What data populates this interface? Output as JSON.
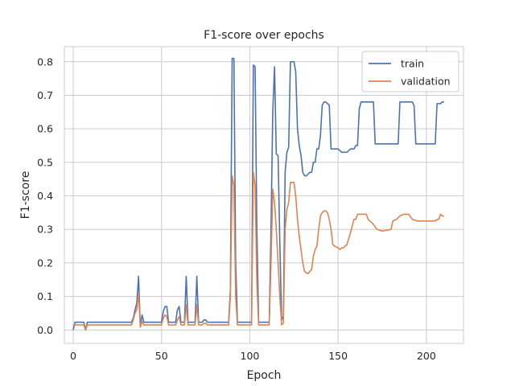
{
  "chart_data": {
    "type": "line",
    "title": "F1-score over epochs",
    "xlabel": "Epoch",
    "ylabel": "F1-score",
    "xlim": [
      -5,
      221
    ],
    "ylim": [
      -0.04,
      0.845
    ],
    "xticks": [
      0,
      50,
      100,
      150,
      200
    ],
    "yticks": [
      0.0,
      0.1,
      0.2,
      0.3,
      0.4,
      0.5,
      0.6,
      0.7,
      0.8
    ],
    "xtick_labels": [
      "0",
      "50",
      "100",
      "150",
      "200"
    ],
    "ytick_labels": [
      "0.0",
      "0.1",
      "0.2",
      "0.3",
      "0.4",
      "0.5",
      "0.6",
      "0.7",
      "0.8"
    ],
    "grid": true,
    "legend_position": "top-right",
    "series": [
      {
        "name": "train",
        "color": "#4c72b0",
        "points": [
          [
            0,
            0.0
          ],
          [
            1,
            0.023
          ],
          [
            2,
            0.023
          ],
          [
            3,
            0.023
          ],
          [
            4,
            0.023
          ],
          [
            5,
            0.023
          ],
          [
            6,
            0.023
          ],
          [
            7,
            0.0
          ],
          [
            8,
            0.023
          ],
          [
            9,
            0.023
          ],
          [
            10,
            0.023
          ],
          [
            15,
            0.023
          ],
          [
            20,
            0.023
          ],
          [
            25,
            0.023
          ],
          [
            30,
            0.023
          ],
          [
            33,
            0.023
          ],
          [
            34,
            0.035
          ],
          [
            35,
            0.06
          ],
          [
            36,
            0.08
          ],
          [
            37,
            0.16
          ],
          [
            38,
            0.01
          ],
          [
            39,
            0.045
          ],
          [
            40,
            0.023
          ],
          [
            45,
            0.023
          ],
          [
            50,
            0.023
          ],
          [
            51,
            0.055
          ],
          [
            52,
            0.07
          ],
          [
            53,
            0.07
          ],
          [
            54,
            0.023
          ],
          [
            55,
            0.023
          ],
          [
            58,
            0.023
          ],
          [
            59,
            0.06
          ],
          [
            60,
            0.07
          ],
          [
            61,
            0.023
          ],
          [
            62,
            0.023
          ],
          [
            63,
            0.023
          ],
          [
            64,
            0.16
          ],
          [
            65,
            0.023
          ],
          [
            66,
            0.023
          ],
          [
            67,
            0.023
          ],
          [
            68,
            0.023
          ],
          [
            69,
            0.023
          ],
          [
            70,
            0.16
          ],
          [
            71,
            0.023
          ],
          [
            72,
            0.023
          ],
          [
            73,
            0.023
          ],
          [
            74,
            0.03
          ],
          [
            75,
            0.03
          ],
          [
            76,
            0.023
          ],
          [
            77,
            0.023
          ],
          [
            80,
            0.023
          ],
          [
            85,
            0.023
          ],
          [
            88,
            0.023
          ],
          [
            89,
            0.12
          ],
          [
            90,
            0.81
          ],
          [
            91,
            0.81
          ],
          [
            92,
            0.2
          ],
          [
            93,
            0.023
          ],
          [
            95,
            0.023
          ],
          [
            100,
            0.023
          ],
          [
            101,
            0.023
          ],
          [
            102,
            0.79
          ],
          [
            103,
            0.785
          ],
          [
            104,
            0.3
          ],
          [
            105,
            0.023
          ],
          [
            108,
            0.023
          ],
          [
            110,
            0.023
          ],
          [
            111,
            0.023
          ],
          [
            112,
            0.3
          ],
          [
            113,
            0.65
          ],
          [
            114,
            0.785
          ],
          [
            115,
            0.525
          ],
          [
            116,
            0.52
          ],
          [
            117,
            0.26
          ],
          [
            118,
            0.03
          ],
          [
            119,
            0.04
          ],
          [
            120,
            0.47
          ],
          [
            121,
            0.53
          ],
          [
            122,
            0.545
          ],
          [
            123,
            0.8
          ],
          [
            124,
            0.8
          ],
          [
            125,
            0.8
          ],
          [
            126,
            0.77
          ],
          [
            127,
            0.6
          ],
          [
            128,
            0.55
          ],
          [
            129,
            0.52
          ],
          [
            130,
            0.47
          ],
          [
            131,
            0.46
          ],
          [
            132,
            0.46
          ],
          [
            133,
            0.465
          ],
          [
            134,
            0.47
          ],
          [
            135,
            0.47
          ],
          [
            136,
            0.5
          ],
          [
            137,
            0.5
          ],
          [
            138,
            0.54
          ],
          [
            139,
            0.54
          ],
          [
            140,
            0.58
          ],
          [
            141,
            0.67
          ],
          [
            142,
            0.68
          ],
          [
            143,
            0.68
          ],
          [
            144,
            0.675
          ],
          [
            145,
            0.67
          ],
          [
            146,
            0.54
          ],
          [
            148,
            0.54
          ],
          [
            150,
            0.54
          ],
          [
            152,
            0.53
          ],
          [
            155,
            0.53
          ],
          [
            157,
            0.54
          ],
          [
            159,
            0.54
          ],
          [
            160,
            0.55
          ],
          [
            161,
            0.55
          ],
          [
            162,
            0.66
          ],
          [
            163,
            0.68
          ],
          [
            166,
            0.68
          ],
          [
            170,
            0.68
          ],
          [
            171,
            0.555
          ],
          [
            175,
            0.555
          ],
          [
            180,
            0.555
          ],
          [
            184,
            0.555
          ],
          [
            185,
            0.68
          ],
          [
            188,
            0.68
          ],
          [
            192,
            0.68
          ],
          [
            193,
            0.67
          ],
          [
            194,
            0.555
          ],
          [
            200,
            0.555
          ],
          [
            204,
            0.555
          ],
          [
            205,
            0.555
          ],
          [
            206,
            0.675
          ],
          [
            207,
            0.675
          ],
          [
            208,
            0.675
          ],
          [
            209,
            0.68
          ],
          [
            210,
            0.68
          ]
        ]
      },
      {
        "name": "validation",
        "color": "#dd8452",
        "points": [
          [
            0,
            0.015
          ],
          [
            1,
            0.015
          ],
          [
            2,
            0.015
          ],
          [
            5,
            0.015
          ],
          [
            6,
            0.015
          ],
          [
            7,
            0.0
          ],
          [
            8,
            0.015
          ],
          [
            9,
            0.015
          ],
          [
            10,
            0.015
          ],
          [
            15,
            0.015
          ],
          [
            20,
            0.015
          ],
          [
            25,
            0.015
          ],
          [
            30,
            0.015
          ],
          [
            33,
            0.015
          ],
          [
            34,
            0.03
          ],
          [
            35,
            0.05
          ],
          [
            36,
            0.06
          ],
          [
            37,
            0.11
          ],
          [
            38,
            0.008
          ],
          [
            39,
            0.025
          ],
          [
            40,
            0.015
          ],
          [
            45,
            0.015
          ],
          [
            50,
            0.015
          ],
          [
            51,
            0.035
          ],
          [
            52,
            0.045
          ],
          [
            53,
            0.04
          ],
          [
            54,
            0.015
          ],
          [
            55,
            0.015
          ],
          [
            58,
            0.015
          ],
          [
            59,
            0.03
          ],
          [
            60,
            0.04
          ],
          [
            61,
            0.015
          ],
          [
            62,
            0.015
          ],
          [
            63,
            0.015
          ],
          [
            64,
            0.075
          ],
          [
            65,
            0.015
          ],
          [
            66,
            0.015
          ],
          [
            67,
            0.015
          ],
          [
            68,
            0.015
          ],
          [
            69,
            0.015
          ],
          [
            70,
            0.075
          ],
          [
            71,
            0.015
          ],
          [
            72,
            0.015
          ],
          [
            73,
            0.015
          ],
          [
            74,
            0.02
          ],
          [
            75,
            0.02
          ],
          [
            76,
            0.015
          ],
          [
            77,
            0.015
          ],
          [
            80,
            0.015
          ],
          [
            85,
            0.015
          ],
          [
            88,
            0.015
          ],
          [
            89,
            0.1
          ],
          [
            90,
            0.46
          ],
          [
            91,
            0.43
          ],
          [
            92,
            0.1
          ],
          [
            93,
            0.015
          ],
          [
            95,
            0.015
          ],
          [
            100,
            0.015
          ],
          [
            101,
            0.015
          ],
          [
            102,
            0.47
          ],
          [
            103,
            0.43
          ],
          [
            104,
            0.14
          ],
          [
            105,
            0.015
          ],
          [
            108,
            0.015
          ],
          [
            110,
            0.015
          ],
          [
            111,
            0.015
          ],
          [
            112,
            0.2
          ],
          [
            113,
            0.42
          ],
          [
            114,
            0.38
          ],
          [
            115,
            0.3
          ],
          [
            116,
            0.2
          ],
          [
            117,
            0.1
          ],
          [
            118,
            0.015
          ],
          [
            119,
            0.02
          ],
          [
            120,
            0.3
          ],
          [
            121,
            0.36
          ],
          [
            122,
            0.38
          ],
          [
            123,
            0.44
          ],
          [
            124,
            0.44
          ],
          [
            125,
            0.44
          ],
          [
            126,
            0.4
          ],
          [
            127,
            0.33
          ],
          [
            128,
            0.28
          ],
          [
            129,
            0.24
          ],
          [
            130,
            0.2
          ],
          [
            131,
            0.175
          ],
          [
            132,
            0.17
          ],
          [
            133,
            0.168
          ],
          [
            134,
            0.175
          ],
          [
            135,
            0.18
          ],
          [
            136,
            0.22
          ],
          [
            137,
            0.24
          ],
          [
            138,
            0.25
          ],
          [
            139,
            0.3
          ],
          [
            140,
            0.34
          ],
          [
            141,
            0.35
          ],
          [
            142,
            0.355
          ],
          [
            143,
            0.355
          ],
          [
            144,
            0.35
          ],
          [
            145,
            0.33
          ],
          [
            146,
            0.3
          ],
          [
            147,
            0.255
          ],
          [
            148,
            0.25
          ],
          [
            150,
            0.245
          ],
          [
            151,
            0.24
          ],
          [
            152,
            0.245
          ],
          [
            153,
            0.245
          ],
          [
            155,
            0.255
          ],
          [
            157,
            0.29
          ],
          [
            159,
            0.33
          ],
          [
            160,
            0.33
          ],
          [
            161,
            0.345
          ],
          [
            162,
            0.345
          ],
          [
            163,
            0.345
          ],
          [
            166,
            0.345
          ],
          [
            167,
            0.33
          ],
          [
            170,
            0.315
          ],
          [
            172,
            0.3
          ],
          [
            175,
            0.295
          ],
          [
            180,
            0.3
          ],
          [
            181,
            0.325
          ],
          [
            183,
            0.33
          ],
          [
            185,
            0.34
          ],
          [
            187,
            0.345
          ],
          [
            190,
            0.345
          ],
          [
            192,
            0.33
          ],
          [
            195,
            0.325
          ],
          [
            200,
            0.325
          ],
          [
            205,
            0.325
          ],
          [
            206,
            0.33
          ],
          [
            207,
            0.33
          ],
          [
            208,
            0.345
          ],
          [
            209,
            0.34
          ],
          [
            210,
            0.34
          ]
        ]
      }
    ]
  }
}
